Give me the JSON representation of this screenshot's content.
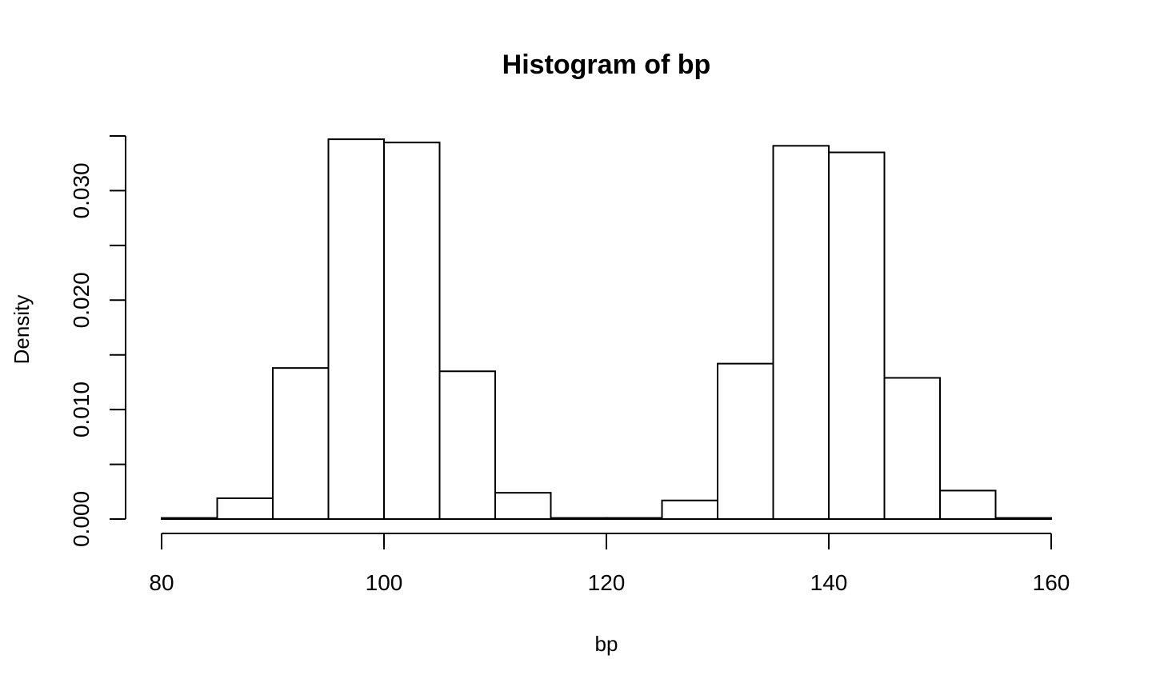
{
  "chart_data": {
    "type": "bar",
    "title": "Histogram of bp",
    "xlabel": "bp",
    "ylabel": "Density",
    "xlim": [
      80,
      160
    ],
    "ylim": [
      0,
      0.035
    ],
    "x_ticks": [
      80,
      100,
      120,
      140,
      160
    ],
    "x_tick_labels": [
      "80",
      "100",
      "120",
      "140",
      "160"
    ],
    "y_ticks": [
      0,
      0.005,
      0.01,
      0.015,
      0.02,
      0.025,
      0.03,
      0.035
    ],
    "y_tick_labels": [
      "0.000",
      "",
      "0.010",
      "",
      "0.020",
      "",
      "0.030",
      ""
    ],
    "bin_edges": [
      80,
      85,
      90,
      95,
      100,
      105,
      110,
      115,
      120,
      125,
      130,
      135,
      140,
      145,
      150,
      155,
      160
    ],
    "values": [
      0.0001,
      0.0019,
      0.0138,
      0.0347,
      0.0344,
      0.0135,
      0.0024,
      0.0001,
      0.0001,
      0.0017,
      0.0142,
      0.0341,
      0.0335,
      0.0129,
      0.0026,
      0.0001
    ],
    "grid": false,
    "legend": "none",
    "colors": {
      "bar_fill": "#ffffff",
      "bar_stroke": "#000000",
      "background": "#ffffff"
    }
  }
}
